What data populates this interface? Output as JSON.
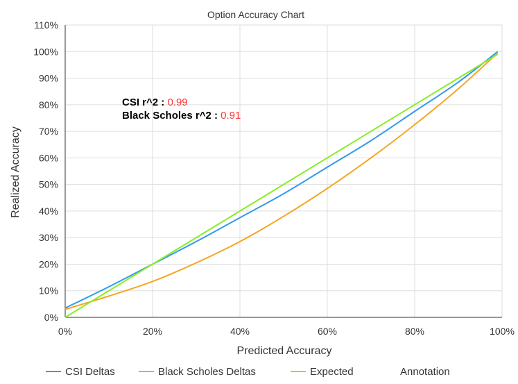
{
  "chart_data": {
    "type": "line",
    "title": "Option Accuracy Chart",
    "xlabel": "Predicted Accuracy",
    "ylabel": "Realized Accuracy",
    "xlim": [
      0,
      100
    ],
    "ylim": [
      0,
      110
    ],
    "x_ticks": [
      "0%",
      "20%",
      "40%",
      "60%",
      "80%",
      "100%"
    ],
    "y_ticks": [
      "0%",
      "10%",
      "20%",
      "30%",
      "40%",
      "50%",
      "60%",
      "70%",
      "80%",
      "90%",
      "100%",
      "110%"
    ],
    "grid": true,
    "legend_position": "bottom",
    "series": [
      {
        "name": "CSI Deltas",
        "color": "#3399ee",
        "x": [
          0,
          10,
          20,
          30,
          40,
          50,
          60,
          70,
          80,
          90,
          99
        ],
        "y": [
          3.5,
          11.5,
          20,
          28.5,
          37.5,
          46.5,
          56.5,
          66.5,
          77.5,
          88.5,
          100
        ]
      },
      {
        "name": "Black Scholes Deltas",
        "color": "#f5a623",
        "x": [
          0,
          10,
          20,
          30,
          40,
          50,
          60,
          70,
          80,
          90,
          99
        ],
        "y": [
          3,
          8,
          13.5,
          20.5,
          28.5,
          38,
          48.5,
          60,
          72.5,
          86,
          99.5
        ]
      },
      {
        "name": "Expected",
        "color": "#88ee22",
        "x": [
          0,
          99
        ],
        "y": [
          0,
          99
        ]
      }
    ],
    "legend_extra": "Annotation",
    "annotations": [
      {
        "label": "CSI r^2 :",
        "value": "0.99"
      },
      {
        "label": "Black Scholes r^2 :",
        "value": "0.91"
      }
    ]
  }
}
